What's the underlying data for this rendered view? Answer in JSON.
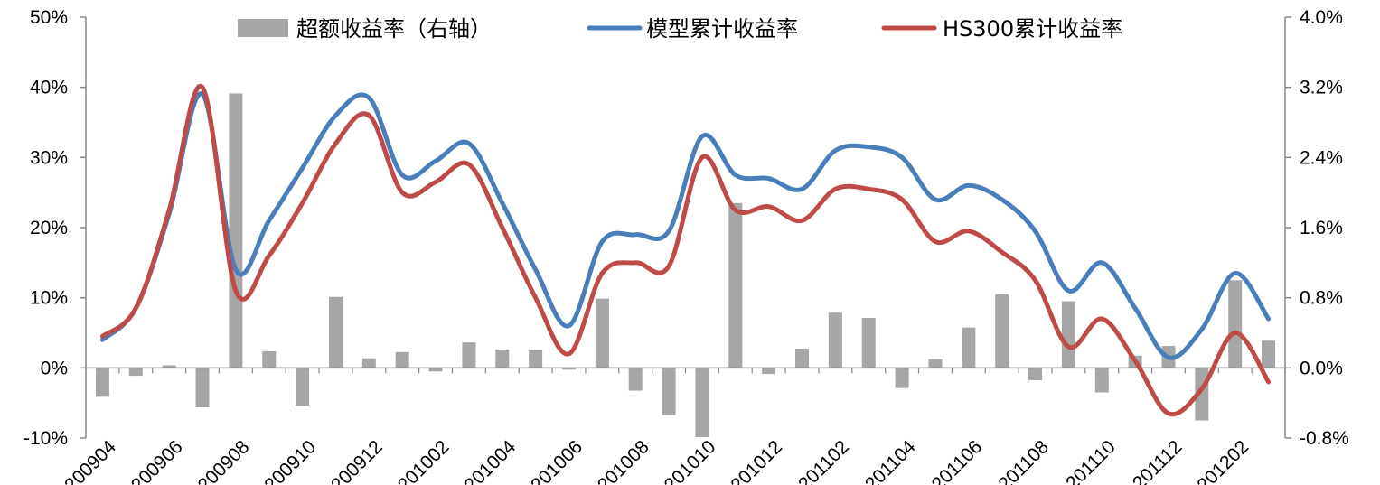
{
  "chart_data": {
    "type": "bar+line",
    "title": "",
    "categories": [
      "200904",
      "200905",
      "200906",
      "200907",
      "200908",
      "200909",
      "200910",
      "200911",
      "200912",
      "201001",
      "201002",
      "201003",
      "201004",
      "201005",
      "201006",
      "201007",
      "201008",
      "201009",
      "201010",
      "201011",
      "201012",
      "201101",
      "201102",
      "201103",
      "201104",
      "201105",
      "201106",
      "201107",
      "201108",
      "201109",
      "201110",
      "201111",
      "201112",
      "201201",
      "201202",
      "201203"
    ],
    "x_tick_labels": [
      "200904",
      "200906",
      "200908",
      "200910",
      "200912",
      "201002",
      "201004",
      "201006",
      "201008",
      "201010",
      "201012",
      "201102",
      "201104",
      "201106",
      "201108",
      "201110",
      "201112",
      "201202"
    ],
    "y_left": {
      "min": -10,
      "max": 50,
      "step": 10,
      "unit": "%"
    },
    "y_right": {
      "min": -0.8,
      "max": 4.0,
      "step": 0.8,
      "unit": "%"
    },
    "legend": {
      "placement": "top"
    },
    "series": [
      {
        "name": "超额收益率（右轴）",
        "type": "bar",
        "axis": "right",
        "color": "#a6a6a6",
        "values": [
          -0.33,
          -0.09,
          0.03,
          -0.45,
          3.13,
          0.19,
          -0.43,
          0.81,
          0.11,
          0.18,
          -0.04,
          0.29,
          0.21,
          0.2,
          -0.02,
          0.79,
          -0.26,
          -0.54,
          -0.79,
          1.88,
          -0.07,
          0.22,
          0.63,
          0.57,
          -0.23,
          0.1,
          0.46,
          0.84,
          -0.14,
          0.76,
          -0.28,
          0.14,
          0.25,
          -0.6,
          1.0,
          0.31
        ]
      },
      {
        "name": "模型累计收益率",
        "type": "line",
        "axis": "left",
        "color": "#4a7ebb",
        "values": [
          4.0,
          8.5,
          22.0,
          39.0,
          14.0,
          21.0,
          28.5,
          36.0,
          38.5,
          27.5,
          29.5,
          32.0,
          23.5,
          14.0,
          6.0,
          18.0,
          19.0,
          19.5,
          33.0,
          27.5,
          27.0,
          25.5,
          31.0,
          31.5,
          30.0,
          24.0,
          26.0,
          24.0,
          19.5,
          11.0,
          15.0,
          8.5,
          1.5,
          5.5,
          13.5,
          7.0
        ]
      },
      {
        "name": "HS300累计收益率",
        "type": "line",
        "axis": "left",
        "color": "#be4b48",
        "values": [
          4.5,
          8.5,
          22.5,
          40.0,
          11.0,
          16.0,
          23.5,
          32.0,
          36.0,
          25.0,
          26.5,
          29.0,
          20.0,
          10.0,
          2.0,
          13.5,
          15.0,
          14.5,
          30.0,
          22.5,
          23.0,
          21.0,
          25.5,
          25.5,
          24.0,
          18.0,
          19.5,
          16.5,
          12.5,
          3.0,
          7.0,
          1.0,
          -6.5,
          -3.0,
          5.0,
          -2.0
        ]
      }
    ]
  }
}
